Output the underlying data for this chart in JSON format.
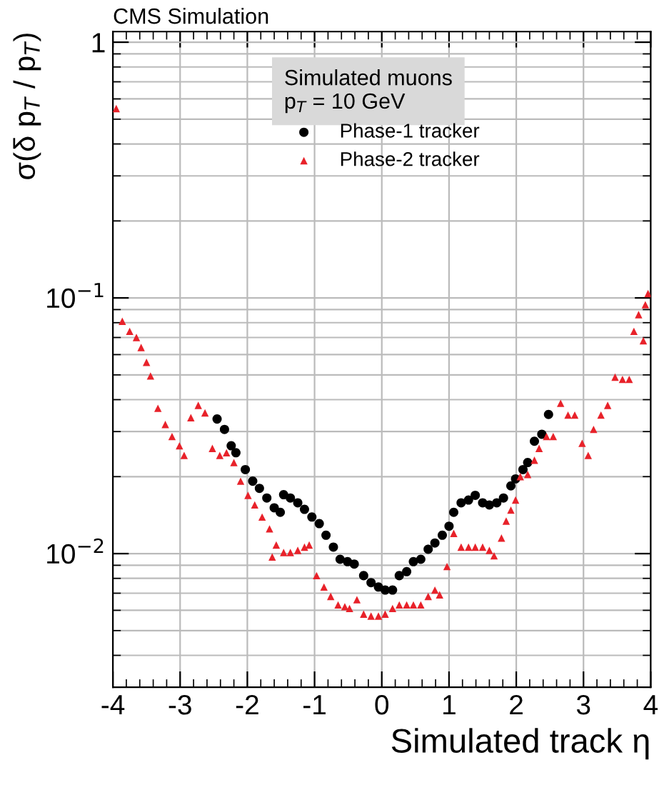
{
  "chart_data": {
    "type": "scatter",
    "title": "CMS Simulation",
    "xlabel": "Simulated track η",
    "ylabel": "σ(δ p$_{T}$ / p$_{T}$)",
    "legend_title": "Simulated muons\np$_{T}$ = 10 GeV",
    "log": "y",
    "grid": true,
    "legend": "top",
    "xlim": [
      -4,
      4
    ],
    "xticks": [
      -4,
      -3,
      -2,
      -1,
      0,
      1,
      2,
      3,
      4
    ],
    "ylim": [
      0.003,
      1.1
    ],
    "yticks": [
      {
        "value": 0.01,
        "label": "10$^{−2}$"
      },
      {
        "value": 0.1,
        "label": "10$^{−1}$"
      },
      1
    ],
    "series": [
      {
        "name": "Phase-1 tracker",
        "color": "#000000",
        "marker": "circle",
        "x": [
          -2.45,
          -2.34,
          -2.24,
          -2.17,
          -2.03,
          -1.92,
          -1.82,
          -1.71,
          -1.6,
          -1.51,
          -1.46,
          -1.36,
          -1.25,
          -1.15,
          -1.04,
          -0.93,
          -0.83,
          -0.72,
          -0.62,
          -0.51,
          -0.41,
          -0.27,
          -0.16,
          -0.05,
          0.05,
          0.16,
          0.26,
          0.37,
          0.47,
          0.58,
          0.69,
          0.79,
          0.9,
          1.0,
          1.07,
          1.18,
          1.29,
          1.39,
          1.5,
          1.6,
          1.71,
          1.81,
          1.92,
          1.99,
          2.1,
          2.17,
          2.27,
          2.38,
          2.48
        ],
        "values": [
          0.0336,
          0.0306,
          0.0264,
          0.0248,
          0.0213,
          0.0192,
          0.018,
          0.0165,
          0.0151,
          0.0145,
          0.017,
          0.0165,
          0.0158,
          0.0149,
          0.0139,
          0.0131,
          0.0118,
          0.0106,
          0.0095,
          0.0093,
          0.0091,
          0.0082,
          0.0077,
          0.0074,
          0.0072,
          0.0072,
          0.0082,
          0.0085,
          0.0093,
          0.0095,
          0.0104,
          0.011,
          0.0118,
          0.0128,
          0.0145,
          0.0158,
          0.0162,
          0.0169,
          0.0158,
          0.0155,
          0.0158,
          0.0165,
          0.0184,
          0.0196,
          0.0213,
          0.0227,
          0.0275,
          0.0293,
          0.035
        ]
      },
      {
        "name": "Phase-2 tracker",
        "color": "#e8222a",
        "marker": "triangle",
        "x": [
          -3.95,
          -3.86,
          -3.75,
          -3.65,
          -3.58,
          -3.5,
          -3.44,
          -3.33,
          -3.22,
          -3.12,
          -3.01,
          -2.94,
          -2.84,
          -2.73,
          -2.63,
          -2.52,
          -2.41,
          -2.31,
          -2.2,
          -2.1,
          -1.99,
          -1.89,
          -1.78,
          -1.67,
          -1.63,
          -1.57,
          -1.46,
          -1.36,
          -1.25,
          -1.15,
          -1.08,
          -0.97,
          -0.86,
          -0.76,
          -0.65,
          -0.55,
          -0.48,
          -0.37,
          -0.27,
          -0.16,
          -0.05,
          0.05,
          0.16,
          0.26,
          0.37,
          0.47,
          0.58,
          0.69,
          0.79,
          0.86,
          0.97,
          1.07,
          1.18,
          1.29,
          1.39,
          1.5,
          1.6,
          1.67,
          1.78,
          1.85,
          1.92,
          1.99,
          2.06,
          2.17,
          2.27,
          2.34,
          2.45,
          2.55,
          2.66,
          2.77,
          2.87,
          2.98,
          3.07,
          3.15,
          3.26,
          3.36,
          3.47,
          3.58,
          3.68,
          3.75,
          3.82,
          3.89,
          3.92,
          3.96
        ],
        "values": [
          0.55,
          0.081,
          0.074,
          0.07,
          0.064,
          0.056,
          0.0495,
          0.037,
          0.032,
          0.0287,
          0.0264,
          0.0242,
          0.034,
          0.038,
          0.0355,
          0.0258,
          0.0242,
          0.0248,
          0.0227,
          0.0192,
          0.0169,
          0.0155,
          0.0139,
          0.0125,
          0.0097,
          0.0108,
          0.0101,
          0.0101,
          0.0103,
          0.0106,
          0.0108,
          0.0082,
          0.0074,
          0.0068,
          0.0063,
          0.0062,
          0.0061,
          0.0066,
          0.0058,
          0.0057,
          0.0057,
          0.0058,
          0.0061,
          0.0063,
          0.0063,
          0.0063,
          0.0063,
          0.0068,
          0.0072,
          0.0069,
          0.0089,
          0.012,
          0.0106,
          0.0106,
          0.0106,
          0.0106,
          0.0103,
          0.0098,
          0.0115,
          0.0134,
          0.0148,
          0.0162,
          0.02,
          0.0204,
          0.0232,
          0.0258,
          0.0287,
          0.0287,
          0.0387,
          0.0348,
          0.0348,
          0.027,
          0.0242,
          0.0306,
          0.0348,
          0.038,
          0.049,
          0.048,
          0.048,
          0.074,
          0.086,
          0.068,
          0.094,
          0.104
        ]
      }
    ]
  }
}
